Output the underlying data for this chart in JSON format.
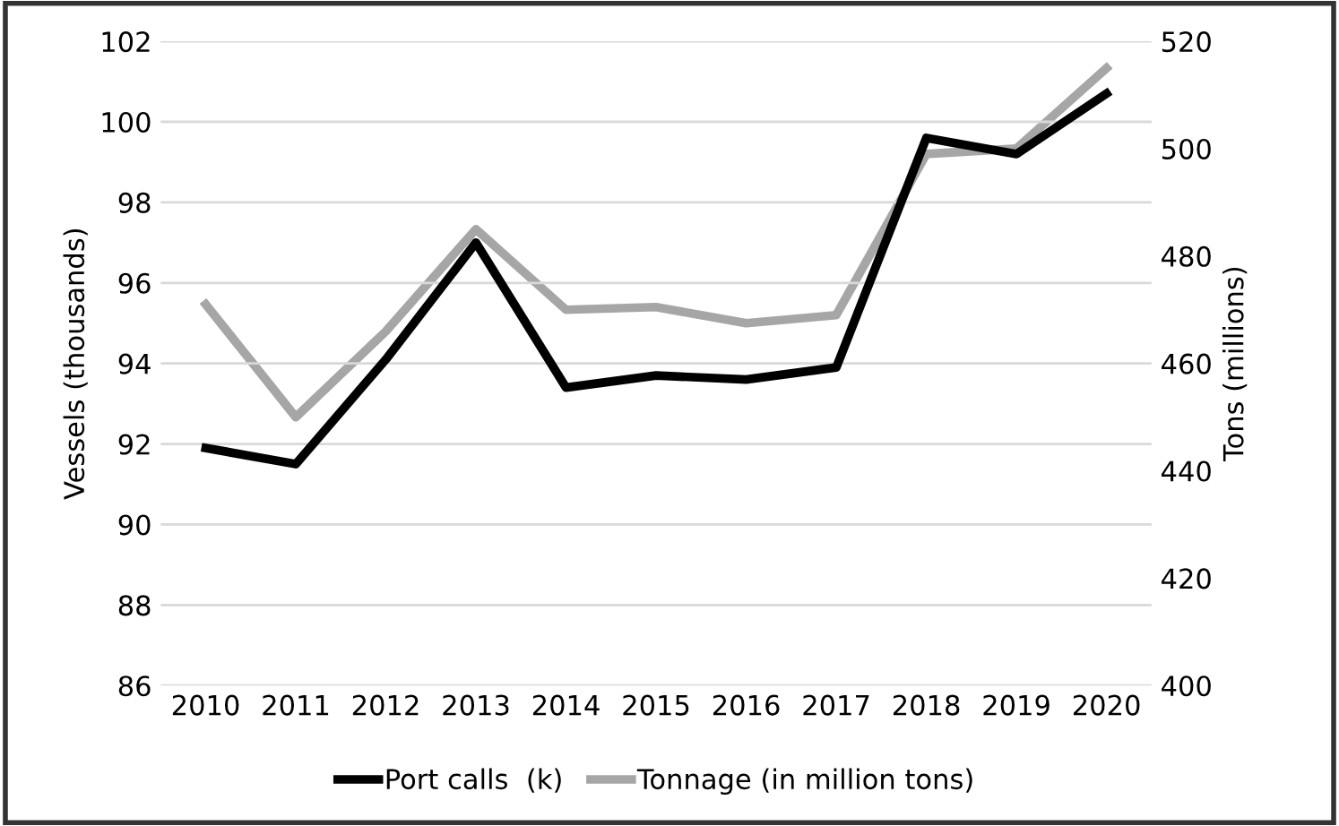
{
  "chart_data": {
    "type": "line",
    "ylabel": "Vessels (thousands)",
    "y2label": "Tons (millions)",
    "categories": [
      "2010",
      "2011",
      "2012",
      "2013",
      "2014",
      "2015",
      "2016",
      "2017",
      "2018",
      "2019",
      "2020"
    ],
    "series": [
      {
        "name": "Port calls  (k)",
        "color": "#000000",
        "values": [
          91.9,
          91.5,
          94.1,
          97.0,
          93.4,
          93.7,
          93.6,
          93.9,
          99.6,
          99.2,
          100.7
        ]
      },
      {
        "name": "Tonnage (in million tons)",
        "color": "#a6a6a6",
        "axis": "y2",
        "values": [
          471,
          450,
          466,
          485,
          470,
          470.5,
          467.5,
          469,
          499,
          500,
          515
        ]
      }
    ],
    "ylim": [
      86,
      102
    ],
    "yticks": [
      86,
      88,
      90,
      92,
      94,
      96,
      98,
      100,
      102
    ],
    "y2lim": [
      400,
      520
    ],
    "y2ticks": [
      400,
      420,
      440,
      460,
      480,
      500,
      520
    ],
    "grid": "y",
    "legend": "bottom",
    "line_style": "solid",
    "marker": "none"
  }
}
